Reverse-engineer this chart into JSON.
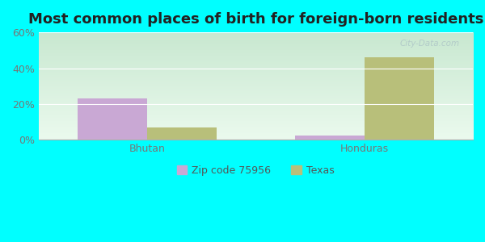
{
  "title": "Most common places of birth for foreign-born residents",
  "categories": [
    "Bhutan",
    "Honduras"
  ],
  "series": {
    "Zip code 75956": [
      23,
      2.5
    ],
    "Texas": [
      7,
      46
    ]
  },
  "colors": {
    "Zip code 75956": "#c9a8d4",
    "Texas": "#b8bf7a"
  },
  "ylim": [
    0,
    60
  ],
  "yticks": [
    0,
    20,
    40,
    60
  ],
  "ytick_labels": [
    "0%",
    "20%",
    "40%",
    "60%"
  ],
  "background_color": "#00ffff",
  "plot_bg_top": "#c8e8d0",
  "plot_bg_bottom": "#e8f8ee",
  "title_fontsize": 13,
  "bar_width": 0.32,
  "legend_labels": [
    "Zip code 75956",
    "Texas"
  ],
  "watermark": "City-Data.com"
}
